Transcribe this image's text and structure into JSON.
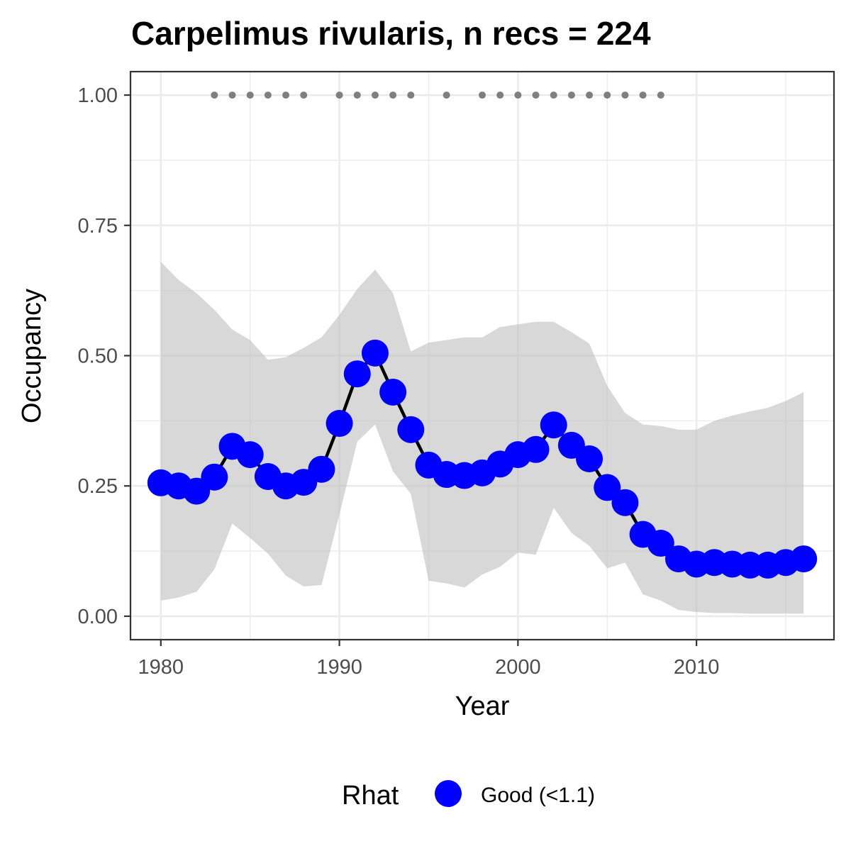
{
  "chart_data": {
    "type": "line",
    "title": "Carpelimus rivularis, n recs = 224",
    "xlabel": "Year",
    "ylabel": "Occupancy",
    "xlim": [
      1978.3,
      2017.7
    ],
    "ylim": [
      -0.045,
      1.045
    ],
    "x_ticks": [
      1980,
      1990,
      2000,
      2010
    ],
    "x_tick_labels": [
      "1980",
      "1990",
      "2000",
      "2010"
    ],
    "y_ticks": [
      0,
      0.25,
      0.5,
      0.75,
      1
    ],
    "y_tick_labels": [
      "0.00",
      "0.25",
      "0.50",
      "0.75",
      "1.00"
    ],
    "grid": true,
    "colors": {
      "panel_border": "#333333",
      "grid": "#ebebeb",
      "ribbon": "#bebebe",
      "line": "#000000",
      "point": "#0000ff",
      "record_dots": "#7f7f7f",
      "tick_text": "#4d4d4d"
    },
    "series": [
      {
        "x": [
          1980,
          1981,
          1982,
          1983,
          1984,
          1985,
          1986,
          1987,
          1988,
          1989,
          1990,
          1991,
          1992,
          1993,
          1994,
          1995,
          1996,
          1997,
          1998,
          1999,
          2000,
          2001,
          2002,
          2003,
          2004,
          2005,
          2006,
          2007,
          2008,
          2009,
          2010,
          2011,
          2012,
          2013,
          2014,
          2015,
          2016
        ],
        "y": [
          0.256,
          0.25,
          0.24,
          0.267,
          0.326,
          0.31,
          0.268,
          0.25,
          0.257,
          0.282,
          0.37,
          0.465,
          0.505,
          0.43,
          0.358,
          0.29,
          0.272,
          0.27,
          0.275,
          0.292,
          0.31,
          0.32,
          0.367,
          0.328,
          0.302,
          0.247,
          0.218,
          0.157,
          0.14,
          0.11,
          0.1,
          0.103,
          0.1,
          0.098,
          0.098,
          0.103,
          0.11
        ],
        "lower": [
          0.03,
          0.036,
          0.047,
          0.09,
          0.178,
          0.15,
          0.12,
          0.078,
          0.057,
          0.06,
          0.195,
          0.335,
          0.368,
          0.278,
          0.235,
          0.068,
          0.063,
          0.055,
          0.08,
          0.095,
          0.122,
          0.118,
          0.208,
          0.16,
          0.135,
          0.092,
          0.103,
          0.042,
          0.03,
          0.012,
          0.008,
          0.006,
          0.006,
          0.005,
          0.005,
          0.005,
          0.005
        ],
        "upper": [
          0.68,
          0.645,
          0.62,
          0.588,
          0.55,
          0.53,
          0.492,
          0.497,
          0.515,
          0.535,
          0.578,
          0.628,
          0.665,
          0.62,
          0.508,
          0.525,
          0.53,
          0.535,
          0.535,
          0.555,
          0.56,
          0.565,
          0.565,
          0.545,
          0.523,
          0.442,
          0.39,
          0.368,
          0.365,
          0.358,
          0.358,
          0.375,
          0.385,
          0.393,
          0.4,
          0.413,
          0.43
        ]
      }
    ],
    "record_years": [
      1983,
      1984,
      1985,
      1986,
      1987,
      1988,
      1990,
      1991,
      1992,
      1993,
      1994,
      1996,
      1998,
      1999,
      2000,
      2001,
      2002,
      2003,
      2004,
      2005,
      2006,
      2007,
      2008
    ],
    "record_y": 1.0,
    "legend": {
      "title": "Rhat",
      "label": "Good (<1.1)",
      "position": "bottom"
    }
  }
}
